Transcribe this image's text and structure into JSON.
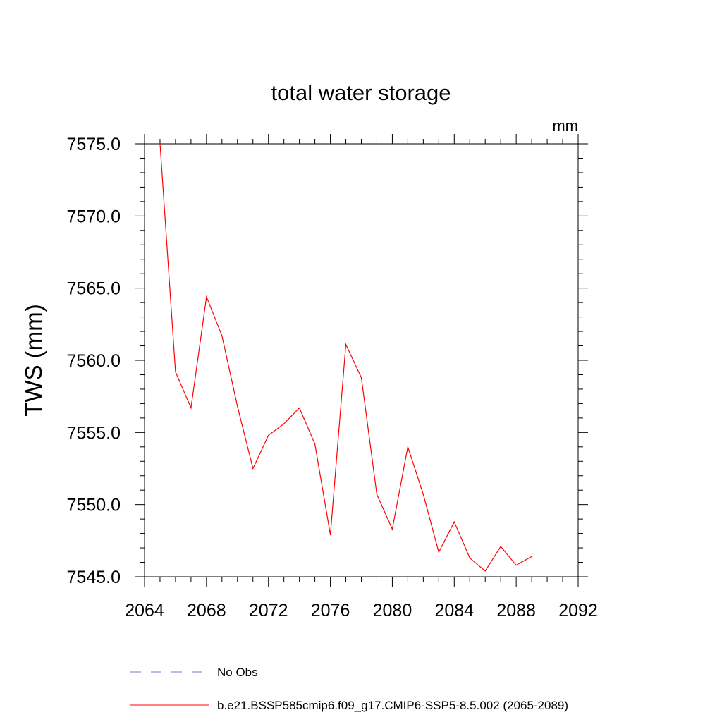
{
  "chart_data": {
    "type": "line",
    "title": "total water storage",
    "units_label": "mm",
    "ylabel": "TWS  (mm)",
    "xlabel": "",
    "xlim": [
      2064,
      2092
    ],
    "ylim": [
      7545.0,
      7575.0
    ],
    "xticks": [
      2064,
      2068,
      2072,
      2076,
      2080,
      2084,
      2088,
      2092
    ],
    "xtick_labels": [
      "2064",
      "2068",
      "2072",
      "2076",
      "2080",
      "2084",
      "2088",
      "2092"
    ],
    "yticks": [
      7545.0,
      7550.0,
      7555.0,
      7560.0,
      7565.0,
      7570.0,
      7575.0
    ],
    "ytick_labels": [
      "7545.0",
      "7550.0",
      "7555.0",
      "7560.0",
      "7565.0",
      "7570.0",
      "7575.0"
    ],
    "x_minor_step": 1,
    "y_minor_step": 1,
    "grid": false,
    "legend_placement": "bottom",
    "series": [
      {
        "name": "b.e21.BSSP585cmip6.f09_g17.CMIP6-SSP5-8.5.002 (2065-2089)",
        "color": "#ff0000",
        "style": "solid",
        "x": [
          2065,
          2066,
          2067,
          2068,
          2069,
          2070,
          2071,
          2072,
          2073,
          2074,
          2075,
          2076,
          2077,
          2078,
          2079,
          2080,
          2081,
          2082,
          2083,
          2084,
          2085,
          2086,
          2087,
          2088,
          2089
        ],
        "y": [
          7575.0,
          7559.2,
          7556.7,
          7564.4,
          7561.7,
          7556.8,
          7552.5,
          7554.8,
          7555.6,
          7556.7,
          7554.2,
          7547.9,
          7561.1,
          7558.8,
          7550.7,
          7548.3,
          7554.0,
          7550.7,
          7546.7,
          7548.8,
          7546.3,
          7545.4,
          7547.1,
          7545.8,
          7546.4
        ]
      }
    ],
    "legend": [
      {
        "label": "No Obs",
        "color": "#7b7bc8",
        "style": "dashed"
      },
      {
        "label": "b.e21.BSSP585cmip6.f09_g17.CMIP6-SSP5-8.5.002 (2065-2089)",
        "color": "#ff0000",
        "style": "solid"
      }
    ]
  }
}
